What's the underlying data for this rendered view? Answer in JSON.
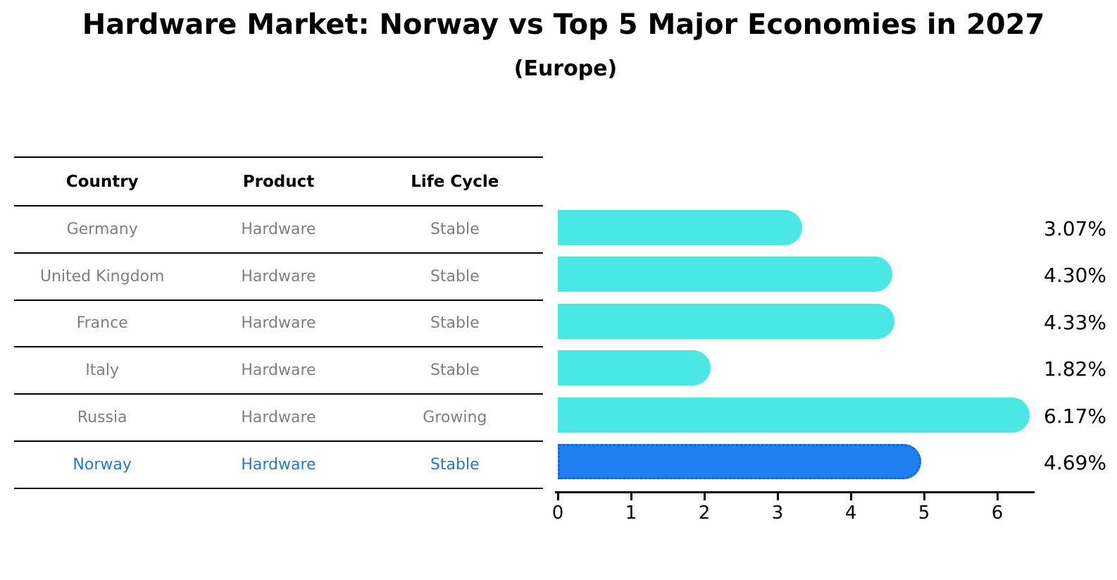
{
  "title": "Hardware Market: Norway vs Top 5 Major Economies in 2027",
  "subtitle": "(Europe)",
  "table": {
    "headers": [
      "Country",
      "Product",
      "Life Cycle"
    ],
    "rows": [
      {
        "country": "Germany",
        "product": "Hardware",
        "life_cycle": "Stable",
        "highlighted": false
      },
      {
        "country": "United Kingdom",
        "product": "Hardware",
        "life_cycle": "Stable",
        "highlighted": false
      },
      {
        "country": "France",
        "product": "Hardware",
        "life_cycle": "Stable",
        "highlighted": false
      },
      {
        "country": "Italy",
        "product": "Hardware",
        "life_cycle": "Stable",
        "highlighted": false
      },
      {
        "country": "Russia",
        "product": "Hardware",
        "life_cycle": "Growing",
        "highlighted": false
      },
      {
        "country": "Norway",
        "product": "Hardware",
        "life_cycle": "Stable",
        "highlighted": true
      }
    ]
  },
  "chart_data": {
    "type": "bar",
    "orientation": "horizontal",
    "title": "Hardware Market: Norway vs Top 5 Major Economies in 2027",
    "subtitle": "(Europe)",
    "categories": [
      "Germany",
      "United Kingdom",
      "France",
      "Italy",
      "Russia",
      "Norway"
    ],
    "values": [
      3.07,
      4.3,
      4.33,
      1.82,
      6.17,
      4.69
    ],
    "value_labels": [
      "3.07%",
      "4.30%",
      "4.33%",
      "1.82%",
      "6.17%",
      "4.69%"
    ],
    "x_ticks": [
      "0",
      "1",
      "2",
      "3",
      "4",
      "5",
      "6"
    ],
    "xlim": [
      0,
      6.5
    ],
    "grid": false,
    "legend": null,
    "colors": {
      "bar": "#4AE8E4",
      "highlight_bar": "#1F7FF0",
      "highlight_bar_edge": "#1565D8",
      "highlight_text": "#2878C8",
      "row_text": "#7F7F7F",
      "header_text": "#000000"
    },
    "highlight_index": 5
  }
}
